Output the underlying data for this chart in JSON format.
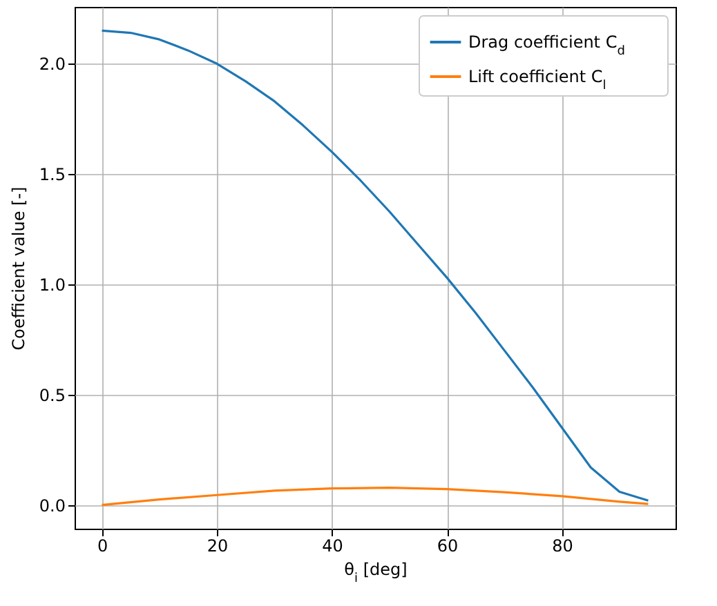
{
  "chart_data": {
    "type": "line",
    "xlabel": "θ$_{i}$ [deg]",
    "ylabel": "Coefficient value [-]",
    "series": [
      {
        "name": "Drag coefficient C$_{d}$",
        "color": "#1f77b4",
        "x": [
          0,
          5,
          10,
          15,
          20,
          25,
          30,
          35,
          40,
          45,
          50,
          55,
          60,
          65,
          70,
          75,
          80,
          85,
          90,
          95
        ],
        "values": [
          2.15,
          2.14,
          2.11,
          2.06,
          2.0,
          1.92,
          1.83,
          1.72,
          1.6,
          1.47,
          1.33,
          1.18,
          1.03,
          0.87,
          0.7,
          0.53,
          0.35,
          0.17,
          0.06,
          0.02
        ]
      },
      {
        "name": "Lift coefficient C$_{l}$",
        "color": "#ff7f0e",
        "x": [
          0,
          10,
          20,
          30,
          40,
          50,
          60,
          70,
          80,
          90,
          95
        ],
        "values": [
          0,
          0.025,
          0.045,
          0.065,
          0.075,
          0.078,
          0.072,
          0.058,
          0.04,
          0.015,
          0.005
        ]
      }
    ],
    "xlim": [
      -4.75,
      99.75
    ],
    "ylim": [
      -0.1075,
      2.2575
    ],
    "xticks": [
      0,
      20,
      40,
      60,
      80
    ],
    "yticks": [
      {
        "value": 0,
        "label": "0.0"
      },
      0.5,
      {
        "value": 1,
        "label": "1.0"
      },
      1.5,
      {
        "value": 2,
        "label": "2.0"
      }
    ],
    "grid": true,
    "legend": "top right",
    "line_style": "solid",
    "marker": "none"
  }
}
